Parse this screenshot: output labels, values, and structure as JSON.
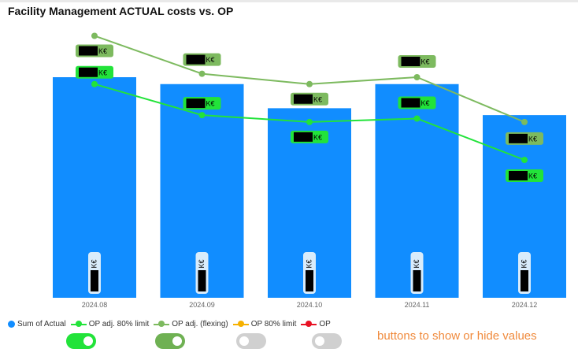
{
  "title": "Facility Management ACTUAL costs vs. OP",
  "chart_data": {
    "type": "bar",
    "categories": [
      "2024.08",
      "2024.09",
      "2024.10",
      "2024.11",
      "2024.12"
    ],
    "series": [
      {
        "name": "Sum of Actual",
        "type": "bar",
        "color": "#118dff",
        "values": [
          64,
          62,
          55,
          62,
          53
        ]
      },
      {
        "name": "OP adj. 80% limit",
        "type": "line",
        "color": "#22e33a",
        "values": [
          62,
          53,
          51,
          52,
          40
        ]
      },
      {
        "name": "OP adj. (flexing)",
        "type": "line",
        "color": "#7dba5f",
        "values": [
          76,
          65,
          62,
          64,
          51
        ]
      }
    ],
    "ylim": [
      0,
      80
    ],
    "value_label_unit": "K€",
    "bar_label_unit": "K€"
  },
  "legend": [
    {
      "label": "Sum of Actual",
      "style": "dot",
      "color": "#118dff"
    },
    {
      "label": "OP adj. 80% limit",
      "style": "line",
      "color": "#22e33a"
    },
    {
      "label": "OP adj. (flexing)",
      "style": "line",
      "color": "#7dba5f"
    },
    {
      "label": "OP 80% limit",
      "style": "line",
      "color": "#f6b100"
    },
    {
      "label": "OP",
      "style": "line",
      "color": "#e81123"
    }
  ],
  "toggles": [
    {
      "state": "on",
      "color": "#22e33a"
    },
    {
      "state": "on",
      "color": "#6fb153"
    },
    {
      "state": "off",
      "color": "#d0d0d0"
    },
    {
      "state": "off",
      "color": "#d0d0d0"
    }
  ],
  "note": "buttons to show or hide values"
}
